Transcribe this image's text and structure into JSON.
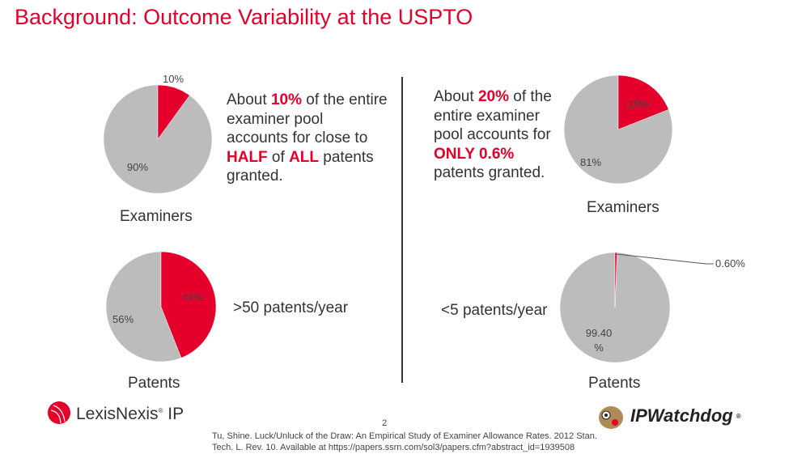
{
  "title": "Background: Outcome Variability at the USPTO",
  "left": {
    "blurb": {
      "p1": "About ",
      "hl1": "10%",
      "p2": " of the entire examiner pool accounts for close to ",
      "hl2": "HALF",
      "p3": " of ",
      "hl3": "ALL",
      "p4": " patents granted."
    },
    "patents_label": ">50 patents/year"
  },
  "right": {
    "blurb": {
      "p1": "About ",
      "hl1": "20%",
      "p2": " of the entire examiner pool accounts for ",
      "hl2": "ONLY 0.6%",
      "p3": " patents granted."
    },
    "patents_label": "<5 patents/year"
  },
  "colors": {
    "accent": "#e4002b",
    "rest": "#bcbcbc"
  },
  "chart_data": [
    {
      "type": "pie",
      "caption": "Examiners",
      "slices": [
        {
          "label": "10%",
          "value": 10,
          "color": "#e4002b"
        },
        {
          "label": "90%",
          "value": 90,
          "color": "#bcbcbc"
        }
      ]
    },
    {
      "type": "pie",
      "caption": "Patents",
      "slices": [
        {
          "label": "44%",
          "value": 44,
          "color": "#e4002b"
        },
        {
          "label": "56%",
          "value": 56,
          "color": "#bcbcbc"
        }
      ]
    },
    {
      "type": "pie",
      "caption": "Examiners",
      "slices": [
        {
          "label": "19%",
          "value": 19,
          "color": "#e4002b"
        },
        {
          "label": "81%",
          "value": 81,
          "color": "#bcbcbc"
        }
      ]
    },
    {
      "type": "pie",
      "caption": "Patents",
      "slices": [
        {
          "label": "0.60%",
          "value": 0.6,
          "color": "#e4002b"
        },
        {
          "label": "99.40 %",
          "value": 99.4,
          "color": "#bcbcbc"
        }
      ]
    }
  ],
  "footer": {
    "citation_line1": "Tu, Shine.  Luck/Unluck of the Draw: An Empirical Study of Examiner Allowance Rates.  2012 Stan.",
    "citation_line2": "Tech. L. Rev. 10. Available at https://papers.ssrn.com/sol3/papers.cfm?abstract_id=1939508",
    "page_number": "2",
    "logo_left": "LexisNexis IP",
    "logo_right": "IPWatchdog"
  }
}
